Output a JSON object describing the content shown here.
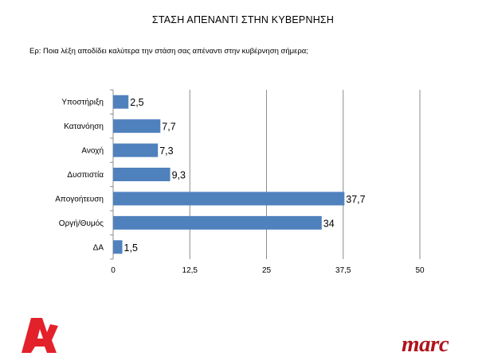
{
  "page": {
    "title": "ΣΤΑΣΗ ΑΠΕΝΑΝΤΙ ΣΤΗΝ ΚΥΒΕΡΝΗΣΗ",
    "question": "Ερ: Ποια λέξη αποδίδει καλύτερα την στάση σας απέναντι στην κυβέρνηση σήμερα;"
  },
  "chart_data": {
    "type": "bar",
    "orientation": "horizontal",
    "categories": [
      "Υποστήριξη",
      "Κατανόηση",
      "Ανοχή",
      "Δυσπιστία",
      "Απογοήτευση",
      "Οργή/Θυμός",
      "ΔΑ"
    ],
    "values": [
      2.5,
      7.7,
      7.3,
      9.3,
      37.7,
      34,
      1.5
    ],
    "data_labels": [
      "2,5",
      "7,7",
      "7,3",
      "9,3",
      "37,7",
      "34",
      "1,5"
    ],
    "xlim": [
      0,
      50
    ],
    "ticks": [
      0,
      12.5,
      25,
      37.5,
      50
    ],
    "tick_labels": [
      "0",
      "12,5",
      "25",
      "37,5",
      "50"
    ],
    "grid": "vertical",
    "legend": "none",
    "bar_color": "#4f81bd"
  },
  "logos": {
    "alpha": {
      "icon": "alpha-logo-icon",
      "color": "#e3212a"
    },
    "marc": {
      "text": "marc",
      "color": "#b0141c"
    }
  }
}
